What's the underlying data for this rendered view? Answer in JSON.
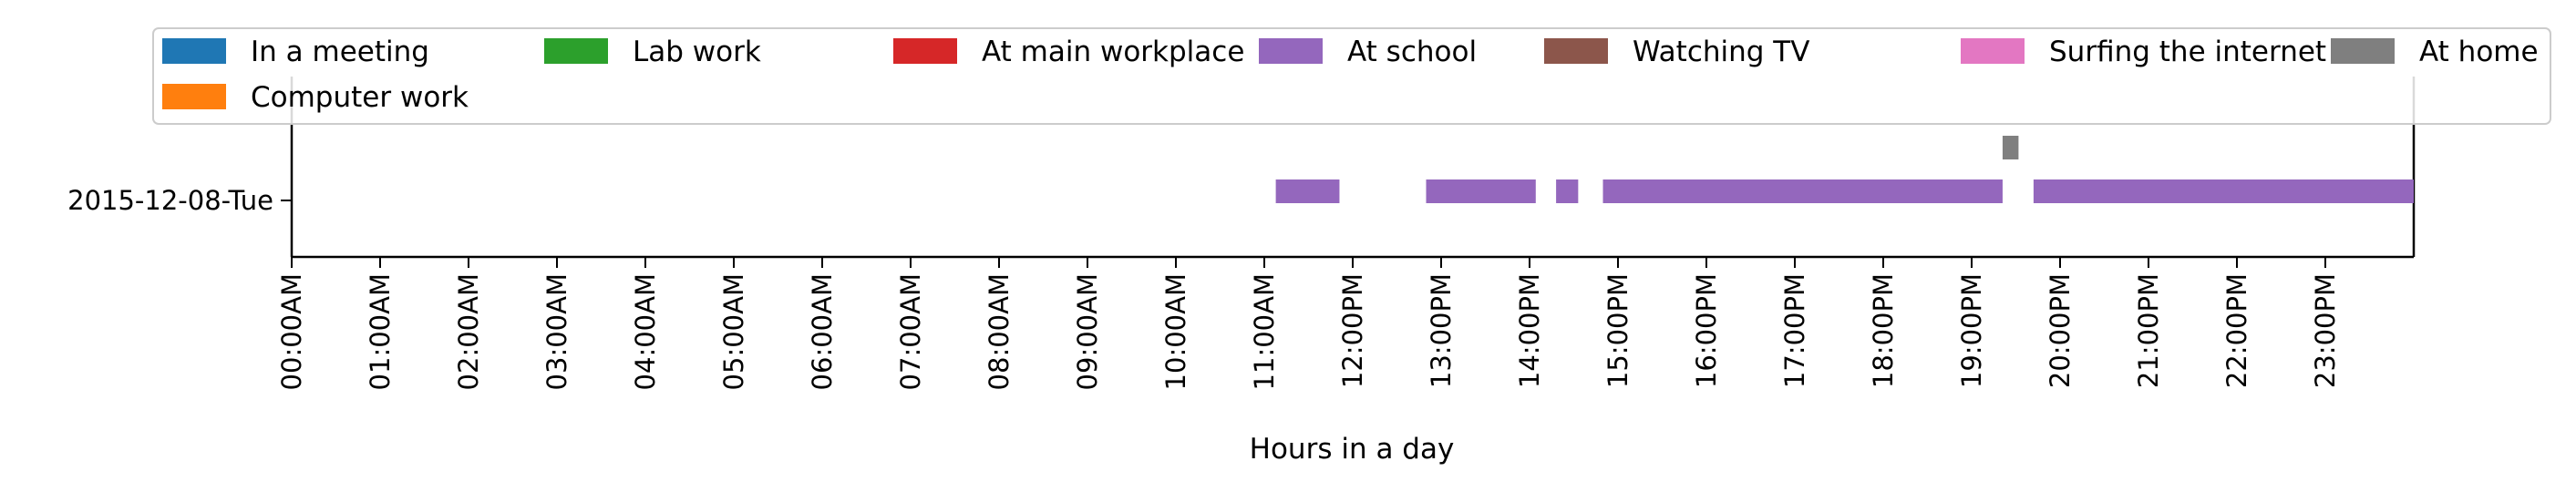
{
  "chart_data": {
    "type": "timeline",
    "xlabel": "Hours in a day",
    "ylabel": "",
    "xlim": [
      0,
      24
    ],
    "x_ticks": [
      "00:00AM",
      "01:00AM",
      "02:00AM",
      "03:00AM",
      "04:00AM",
      "05:00AM",
      "06:00AM",
      "07:00AM",
      "08:00AM",
      "09:00AM",
      "10:00AM",
      "11:00AM",
      "12:00PM",
      "13:00PM",
      "14:00PM",
      "15:00PM",
      "16:00PM",
      "17:00PM",
      "18:00PM",
      "19:00PM",
      "20:00PM",
      "21:00PM",
      "22:00PM",
      "23:00PM"
    ],
    "y_categories": [
      "2015-12-08-Tue"
    ],
    "legend": {
      "placement": "top",
      "entries": [
        {
          "label": "In a meeting",
          "color": "#1f77b4"
        },
        {
          "label": "Lab work",
          "color": "#2ca02c"
        },
        {
          "label": "At main workplace",
          "color": "#d62728"
        },
        {
          "label": "At school",
          "color": "#9467bd"
        },
        {
          "label": "Watching TV",
          "color": "#8c564b"
        },
        {
          "label": "Surfing the internet",
          "color": "#e377c2"
        },
        {
          "label": "At home",
          "color": "#7f7f7f"
        },
        {
          "label": "Computer work",
          "color": "#ff7f0e"
        }
      ]
    },
    "series": [
      {
        "name": "At school",
        "color": "#9467bd",
        "row": 0,
        "lane": "main",
        "intervals": [
          [
            11.13,
            11.85
          ],
          [
            12.83,
            14.07
          ],
          [
            14.3,
            14.55
          ],
          [
            14.83,
            19.35
          ],
          [
            19.7,
            24.0
          ]
        ]
      },
      {
        "name": "At home",
        "color": "#7f7f7f",
        "row": 0,
        "lane": "upper",
        "intervals": [
          [
            19.35,
            19.53
          ]
        ]
      }
    ]
  }
}
